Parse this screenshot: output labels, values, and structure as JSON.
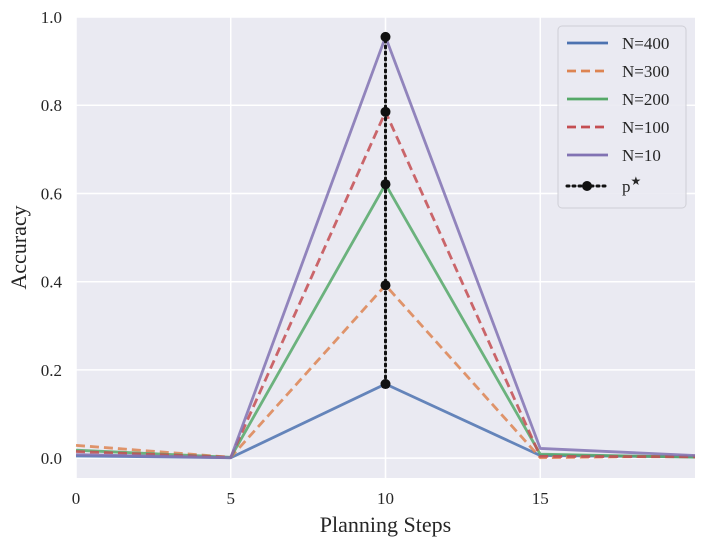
{
  "chart_data": {
    "type": "line",
    "xlabel": "Planning Steps",
    "ylabel": "Accuracy",
    "xlim": [
      0,
      20
    ],
    "ylim": [
      -0.045,
      1.0
    ],
    "xticks": [
      0,
      5,
      10,
      15
    ],
    "yticks": [
      0.0,
      0.2,
      0.4,
      0.6,
      0.8,
      1.0
    ],
    "xtick_labels": [
      "0",
      "5",
      "10",
      "15"
    ],
    "ytick_labels": [
      "0.0",
      "0.2",
      "0.4",
      "0.6",
      "0.8",
      "1.0"
    ],
    "grid": true,
    "background": "#eaeaf2",
    "legend_position": "top-right",
    "x": [
      0,
      5,
      10,
      15,
      20
    ],
    "series": [
      {
        "name": "N=400",
        "values": [
          0.005,
          0.001,
          0.168,
          0.006,
          0.003
        ],
        "color": "#4c72b0",
        "dashed": false
      },
      {
        "name": "N=300",
        "values": [
          0.029,
          0.002,
          0.392,
          0.001,
          0.005
        ],
        "color": "#dd8452",
        "dashed": true
      },
      {
        "name": "N=200",
        "values": [
          0.018,
          0.002,
          0.621,
          0.009,
          0.002
        ],
        "color": "#55a868",
        "dashed": false
      },
      {
        "name": "N=100",
        "values": [
          0.015,
          0.002,
          0.785,
          0.004,
          0.003
        ],
        "color": "#c44e52",
        "dashed": true
      },
      {
        "name": "N=10",
        "values": [
          0.008,
          0.001,
          0.955,
          0.022,
          0.006
        ],
        "color": "#8172b3",
        "dashed": false
      }
    ],
    "p_star": {
      "name": "p",
      "name_superscript": "★",
      "x": 10,
      "values": [
        0.168,
        0.392,
        0.621,
        0.785,
        0.955
      ],
      "color": "#111111",
      "style": "dotted with markers"
    }
  }
}
